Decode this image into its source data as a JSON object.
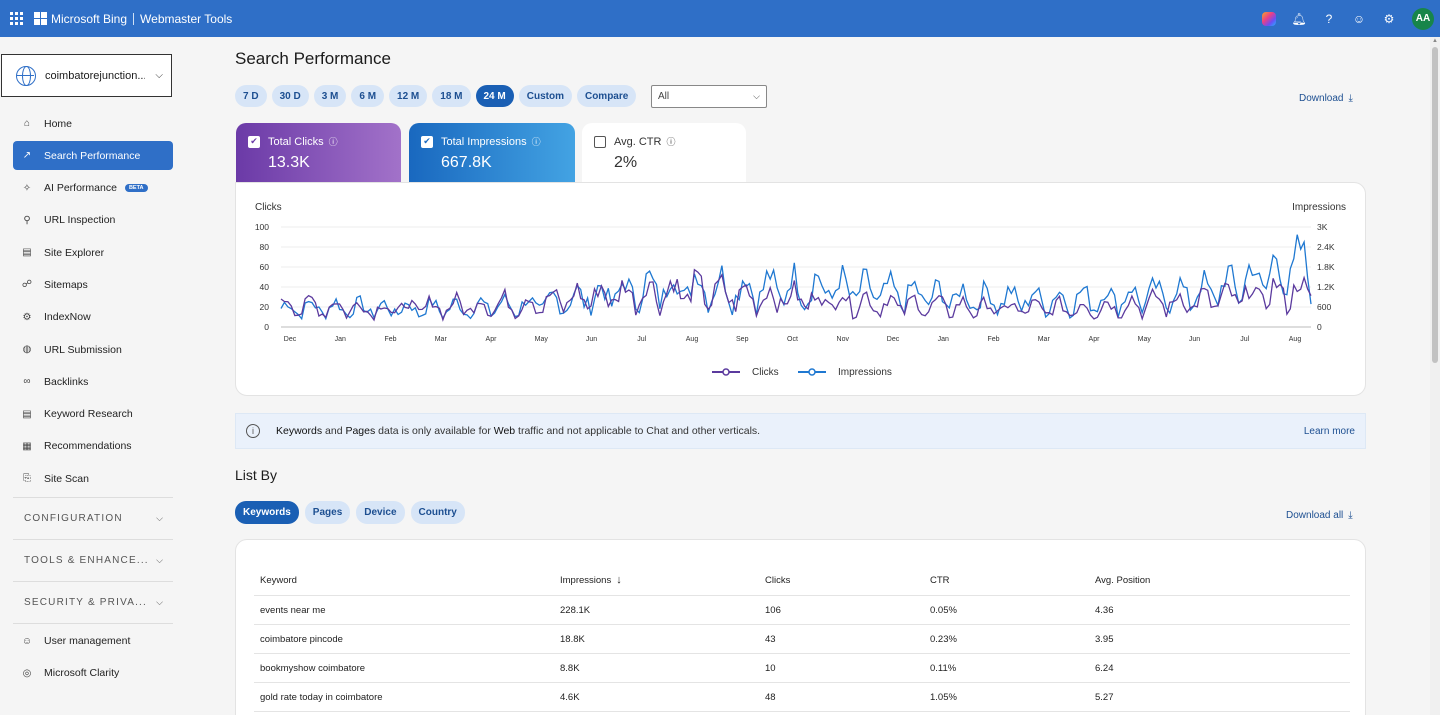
{
  "header": {
    "brand": "Microsoft Bing",
    "product": "Webmaster Tools",
    "avatar_initials": "AA",
    "icons": [
      "waffle-icon",
      "copilot-icon",
      "bell-icon",
      "help-icon",
      "smiley-icon",
      "gear-icon"
    ]
  },
  "sidebar": {
    "site": "coimbatorejunction....",
    "items": [
      {
        "label": "Home",
        "icon": "home-icon",
        "glyph": "⌂"
      },
      {
        "label": "Search Performance",
        "icon": "trend-icon",
        "glyph": "↗",
        "active": true
      },
      {
        "label": "AI Performance",
        "icon": "sparkle-icon",
        "glyph": "✧",
        "badge": "BETA"
      },
      {
        "label": "URL Inspection",
        "icon": "search-icon",
        "glyph": "⚲"
      },
      {
        "label": "Site Explorer",
        "icon": "document-icon",
        "glyph": "▤"
      },
      {
        "label": "Sitemaps",
        "icon": "sitemap-icon",
        "glyph": "☍"
      },
      {
        "label": "IndexNow",
        "icon": "indexnow-icon",
        "glyph": "⚙"
      },
      {
        "label": "URL Submission",
        "icon": "globe-icon",
        "glyph": "◍"
      },
      {
        "label": "Backlinks",
        "icon": "link-icon",
        "glyph": "∞"
      },
      {
        "label": "Keyword Research",
        "icon": "keyword-icon",
        "glyph": "▤"
      },
      {
        "label": "Recommendations",
        "icon": "clipboard-icon",
        "glyph": "▦"
      },
      {
        "label": "Site Scan",
        "icon": "scan-icon",
        "glyph": "⎘"
      }
    ],
    "sections": [
      "CONFIGURATION",
      "TOOLS & ENHANCE...",
      "SECURITY & PRIVA..."
    ],
    "bottom_items": [
      {
        "label": "User management",
        "icon": "user-icon",
        "glyph": "☺"
      },
      {
        "label": "Microsoft Clarity",
        "icon": "clarity-icon",
        "glyph": "◎"
      }
    ]
  },
  "main": {
    "title": "Search Performance",
    "ranges": [
      "7 D",
      "30 D",
      "3 M",
      "6 M",
      "12 M",
      "18 M",
      "24 M",
      "Custom",
      "Compare"
    ],
    "active_range": "24 M",
    "filter_value": "All",
    "download_label": "Download",
    "kpis": [
      {
        "label": "Total Clicks",
        "value": "13.3K",
        "checked": true
      },
      {
        "label": "Total Impressions",
        "value": "667.8K",
        "checked": true
      },
      {
        "label": "Avg. CTR",
        "value": "2%",
        "checked": false
      }
    ],
    "banner": {
      "k1": "Keywords",
      "t1": " and ",
      "k2": "Pages",
      "t2": " data is only available for ",
      "k3": "Web",
      "t3": " traffic and not applicable to Chat and other verticals.",
      "link": "Learn more"
    },
    "list_by": "List By",
    "list_tabs": [
      "Keywords",
      "Pages",
      "Device",
      "Country"
    ],
    "active_tab": "Keywords",
    "download_all": "Download all"
  },
  "table": {
    "headers": [
      "Keyword",
      "Impressions",
      "Clicks",
      "CTR",
      "Avg. Position"
    ],
    "sort_indicator": "↓",
    "rows": [
      [
        "events near me",
        "228.1K",
        "106",
        "0.05%",
        "4.36"
      ],
      [
        "coimbatore pincode",
        "18.8K",
        "43",
        "0.23%",
        "3.95"
      ],
      [
        "bookmyshow coimbatore",
        "8.8K",
        "10",
        "0.11%",
        "6.24"
      ],
      [
        "gold rate today in coimbatore",
        "4.6K",
        "48",
        "1.05%",
        "5.27"
      ]
    ]
  },
  "chart_data": {
    "type": "line",
    "left_axis_label": "Clicks",
    "right_axis_label": "Impressions",
    "left_ticks": [
      "100",
      "80",
      "60",
      "40",
      "20",
      "0"
    ],
    "right_ticks": [
      "3K",
      "2.4K",
      "1.8K",
      "1.2K",
      "600",
      "0"
    ],
    "ylim_left": [
      0,
      100
    ],
    "ylim_right": [
      0,
      3000
    ],
    "x_ticks": [
      "Dec",
      "Jan",
      "Feb",
      "Mar",
      "Apr",
      "May",
      "Jun",
      "Jul",
      "Aug",
      "Sep",
      "Oct",
      "Nov",
      "Dec",
      "Jan",
      "Feb",
      "Mar",
      "Apr",
      "May",
      "Jun",
      "Jul",
      "Aug"
    ],
    "legend": [
      "Clicks",
      "Impressions"
    ],
    "legend_position": "bottom",
    "series": [
      {
        "name": "Clicks",
        "color": "#5b3a9e",
        "axis": "left",
        "monthly_avg": [
          22,
          20,
          18,
          20,
          22,
          24,
          30,
          34,
          36,
          30,
          28,
          26,
          22,
          20,
          18,
          18,
          20,
          24,
          26,
          32,
          36
        ],
        "min": 5,
        "max": 60
      },
      {
        "name": "Impressions",
        "color": "#1f78d1",
        "axis": "right",
        "monthly_avg": [
          560,
          580,
          540,
          560,
          600,
          660,
          900,
          1110,
          1260,
          1140,
          1200,
          1140,
          960,
          900,
          840,
          810,
          870,
          930,
          1050,
          1500,
          1860
        ],
        "min": 150,
        "max": 2790
      }
    ]
  }
}
